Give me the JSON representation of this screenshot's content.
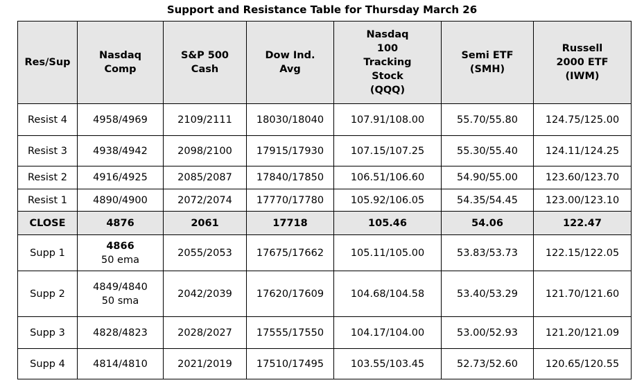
{
  "title": "Support and Resistance Table for Thursday March 26",
  "headers": [
    [
      "Res/Sup"
    ],
    [
      "Nasdaq",
      "Comp"
    ],
    [
      "S&P 500",
      "Cash"
    ],
    [
      "Dow Ind.",
      "Avg"
    ],
    [
      "Nasdaq",
      "100",
      "Tracking",
      "Stock",
      "(QQQ)"
    ],
    [
      "Semi ETF",
      "(SMH)"
    ],
    [
      "Russell",
      "2000 ETF",
      "(IWM)"
    ]
  ],
  "rows": [
    {
      "label": "Resist 4",
      "nasdaq": [
        "4958/4969"
      ],
      "sp500": "2109/2111",
      "dow": "18030/18040",
      "qqq": "107.91/108.00",
      "smh": "55.70/55.80",
      "iwm": "124.75/125.00"
    },
    {
      "label": "Resist 3",
      "nasdaq": [
        "4938/4942"
      ],
      "sp500": "2098/2100",
      "dow": "17915/17930",
      "qqq": "107.15/107.25",
      "smh": "55.30/55.40",
      "iwm": "124.11/124.25"
    },
    {
      "label": "Resist 2",
      "nasdaq": [
        "4916/4925"
      ],
      "sp500": "2085/2087",
      "dow": "17840/17850",
      "qqq": "106.51/106.60",
      "smh": "54.90/55.00",
      "iwm": "123.60/123.70"
    },
    {
      "label": "Resist 1",
      "nasdaq": [
        "4890/4900"
      ],
      "sp500": "2072/2074",
      "dow": "17770/17780",
      "qqq": "105.92/106.05",
      "smh": "54.35/54.45",
      "iwm": "123.00/123.10"
    },
    {
      "label": "CLOSE",
      "nasdaq": [
        "4876"
      ],
      "sp500": "2061",
      "dow": "17718",
      "qqq": "105.46",
      "smh": "54.06",
      "iwm": "122.47"
    },
    {
      "label": "Supp 1",
      "nasdaq": [
        "4866",
        "50 ema"
      ],
      "sp500": "2055/2053",
      "dow": "17675/17662",
      "qqq": "105.11/105.00",
      "smh": "53.83/53.73",
      "iwm": "122.15/122.05"
    },
    {
      "label": "Supp 2",
      "nasdaq": [
        "4849/4840",
        "50 sma"
      ],
      "sp500": "2042/2039",
      "dow": "17620/17609",
      "qqq": "104.68/104.58",
      "smh": "53.40/53.29",
      "iwm": "121.70/121.60"
    },
    {
      "label": "Supp 3",
      "nasdaq": [
        "4828/4823"
      ],
      "sp500": "2028/2027",
      "dow": "17555/17550",
      "qqq": "104.17/104.00",
      "smh": "53.00/52.93",
      "iwm": "121.20/121.09"
    },
    {
      "label": "Supp 4",
      "nasdaq": [
        "4814/4810"
      ],
      "sp500": "2021/2019",
      "dow": "17510/17495",
      "qqq": "103.55/103.45",
      "smh": "52.73/52.60",
      "iwm": "120.65/120.55"
    }
  ]
}
